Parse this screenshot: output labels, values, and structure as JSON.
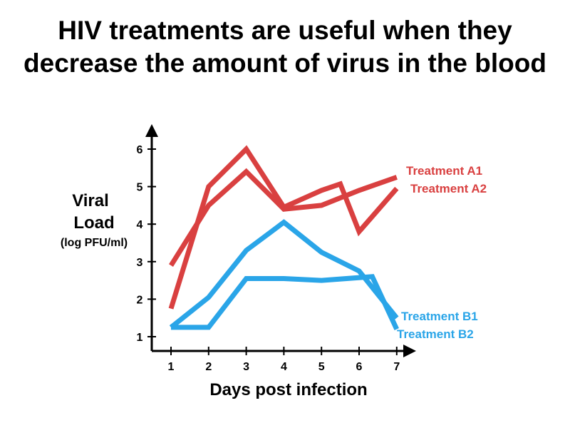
{
  "title_line1": "HIV treatments are useful when they",
  "title_line2": "decrease the amount of virus in the blood",
  "chart_data": {
    "type": "line",
    "title": "HIV treatments are useful when they decrease the amount of virus in the blood",
    "xlabel": "Days post infection",
    "ylabel_main": [
      "Viral",
      "Load"
    ],
    "ylabel_unit": "(log PFU/ml)",
    "x_ticks": [
      1,
      2,
      3,
      4,
      5,
      6,
      7
    ],
    "y_ticks": [
      1,
      2,
      3,
      4,
      5,
      6
    ],
    "xlim": [
      0.5,
      7.5
    ],
    "ylim": [
      0.6,
      6.6
    ],
    "grid": false,
    "legend": "direct labels at line ends",
    "series": [
      {
        "name": "Treatment A1",
        "color": "#d94040",
        "x": [
          1,
          2,
          3,
          4,
          5,
          5.5,
          6,
          7
        ],
        "y": [
          1.75,
          5.0,
          6.0,
          4.45,
          4.9,
          5.07,
          3.8,
          4.95
        ]
      },
      {
        "name": "Treatment A2",
        "color": "#d94040",
        "x": [
          1,
          2,
          3,
          4,
          5,
          6,
          7
        ],
        "y": [
          2.9,
          4.5,
          5.4,
          4.4,
          4.5,
          4.9,
          5.25
        ]
      },
      {
        "name": "Treatment B1",
        "color": "#2aa5e8",
        "x": [
          1,
          2,
          3,
          4,
          5,
          6,
          7
        ],
        "y": [
          1.25,
          2.05,
          3.3,
          4.05,
          3.25,
          2.75,
          1.5
        ]
      },
      {
        "name": "Treatment B2",
        "color": "#2aa5e8",
        "x": [
          1,
          2,
          3,
          4,
          5,
          6.35,
          7
        ],
        "y": [
          1.25,
          1.25,
          2.55,
          2.55,
          2.5,
          2.6,
          1.2
        ]
      }
    ]
  }
}
